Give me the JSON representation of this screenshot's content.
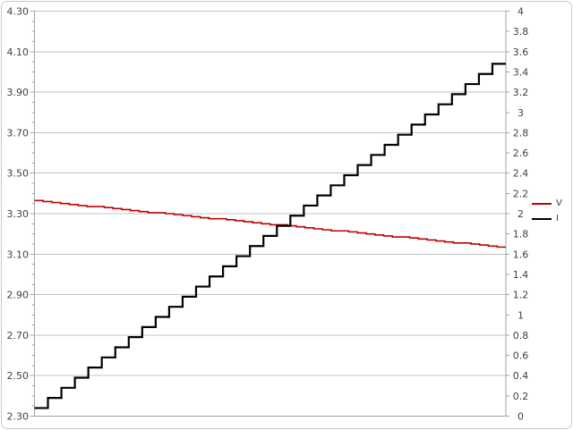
{
  "window": {
    "background": "#FFFFFF",
    "border_color": "#C9C9C9"
  },
  "chart_data": {
    "type": "line",
    "title": "",
    "grid": "horizontal-only",
    "gridline_color": "#C3C3C3",
    "axis_color": "#A3A3A3",
    "label_color": "#404040",
    "legend": {
      "position": "right",
      "entries": [
        {
          "label": "V",
          "color": "#C00000"
        },
        {
          "label": "I",
          "color": "#000000"
        }
      ]
    },
    "axes": {
      "left": {
        "min": 2.3,
        "max": 4.3,
        "major_step": 0.2,
        "minor_step": 0.05,
        "tick_labels": [
          "4.30",
          "4.10",
          "3.90",
          "3.70",
          "3.50",
          "3.30",
          "3.10",
          "2.90",
          "2.70",
          "2.50",
          "2.30"
        ]
      },
      "right": {
        "min": 0,
        "max": 4,
        "major_step": 0.2,
        "tick_labels": [
          "4",
          "3.8",
          "3.6",
          "3.4",
          "3.2",
          "3",
          "2.8",
          "2.6",
          "2.4",
          "2.2",
          "2",
          "1.8",
          "1.6",
          "1.4",
          "1.2",
          "1",
          "0.8",
          "0.6",
          "0.4",
          "0.2",
          "0"
        ]
      },
      "x": {
        "tick_labels": []
      }
    },
    "series": [
      {
        "name": "V",
        "axis": "left",
        "color": "#C00000",
        "stroke_width": 1.6,
        "interpolation": "step",
        "values": [
          3.365,
          3.36,
          3.355,
          3.35,
          3.345,
          3.34,
          3.335,
          3.335,
          3.33,
          3.325,
          3.32,
          3.315,
          3.31,
          3.305,
          3.305,
          3.3,
          3.295,
          3.29,
          3.285,
          3.28,
          3.275,
          3.275,
          3.27,
          3.265,
          3.26,
          3.255,
          3.25,
          3.245,
          3.245,
          3.24,
          3.235,
          3.23,
          3.225,
          3.22,
          3.215,
          3.215,
          3.21,
          3.205,
          3.2,
          3.195,
          3.19,
          3.185,
          3.185,
          3.18,
          3.175,
          3.17,
          3.165,
          3.16,
          3.155,
          3.155,
          3.15,
          3.145,
          3.14,
          3.135
        ]
      },
      {
        "name": "I",
        "axis": "right",
        "color": "#000000",
        "stroke_width": 2.2,
        "interpolation": "step",
        "values": [
          0.08,
          0.18,
          0.28,
          0.38,
          0.48,
          0.58,
          0.68,
          0.78,
          0.88,
          0.98,
          1.08,
          1.18,
          1.28,
          1.38,
          1.48,
          1.58,
          1.68,
          1.78,
          1.88,
          1.98,
          2.08,
          2.18,
          2.28,
          2.38,
          2.48,
          2.58,
          2.68,
          2.78,
          2.88,
          2.98,
          3.08,
          3.18,
          3.28,
          3.38,
          3.48
        ]
      }
    ]
  }
}
